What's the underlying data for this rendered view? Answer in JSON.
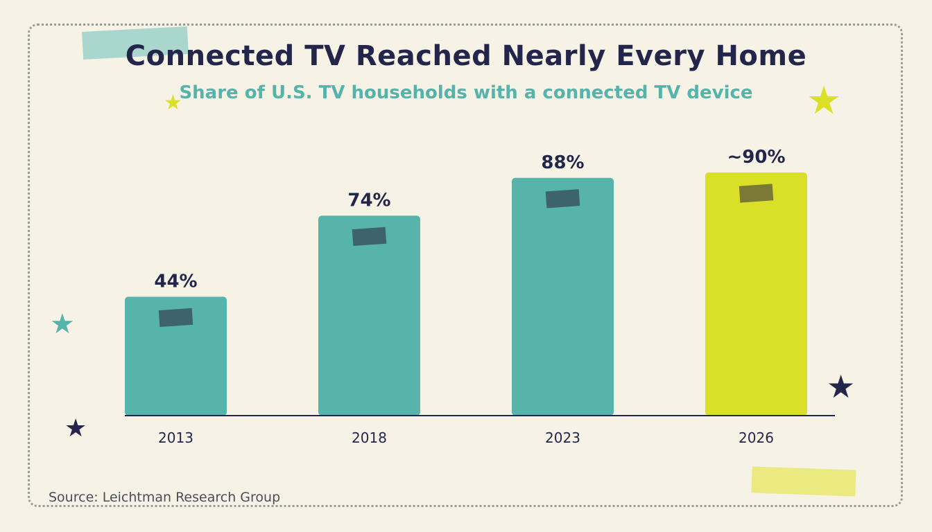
{
  "colors": {
    "background": "#f7f2e6",
    "bar": "#57b4ab",
    "highlight_bar": "#d9e027",
    "tape_on_bar": "#3d636e",
    "tape_on_highlight": "#7a7a36",
    "text_dark": "#23264a",
    "subtitle": "#55b3aa"
  },
  "decorations": {
    "stars": [
      {
        "name": "small-yellow-star",
        "color": "#d9e027",
        "icon": "star-icon"
      },
      {
        "name": "large-yellow-star",
        "color": "#d9e027",
        "icon": "star-icon"
      },
      {
        "name": "teal-star",
        "color": "#57b4ab",
        "icon": "star-icon"
      },
      {
        "name": "navy-star-right",
        "color": "#23264a",
        "icon": "star-icon"
      },
      {
        "name": "navy-star-left",
        "color": "#23264a",
        "icon": "star-icon"
      }
    ]
  },
  "chart_data": {
    "type": "bar",
    "title": "Connected TV Reached Nearly Every Home",
    "subtitle": "Share of U.S. TV households with a connected TV device",
    "categories": [
      "2013",
      "2018",
      "2023",
      "2026"
    ],
    "values": [
      44,
      74,
      88,
      90
    ],
    "value_labels": [
      "44%",
      "74%",
      "88%",
      "~90%"
    ],
    "highlighted_category": "2026",
    "xlabel": "",
    "ylabel": "",
    "ylim": [
      0,
      100
    ],
    "grid": false,
    "legend": "none",
    "source": "Source: Leichtman Research Group"
  }
}
